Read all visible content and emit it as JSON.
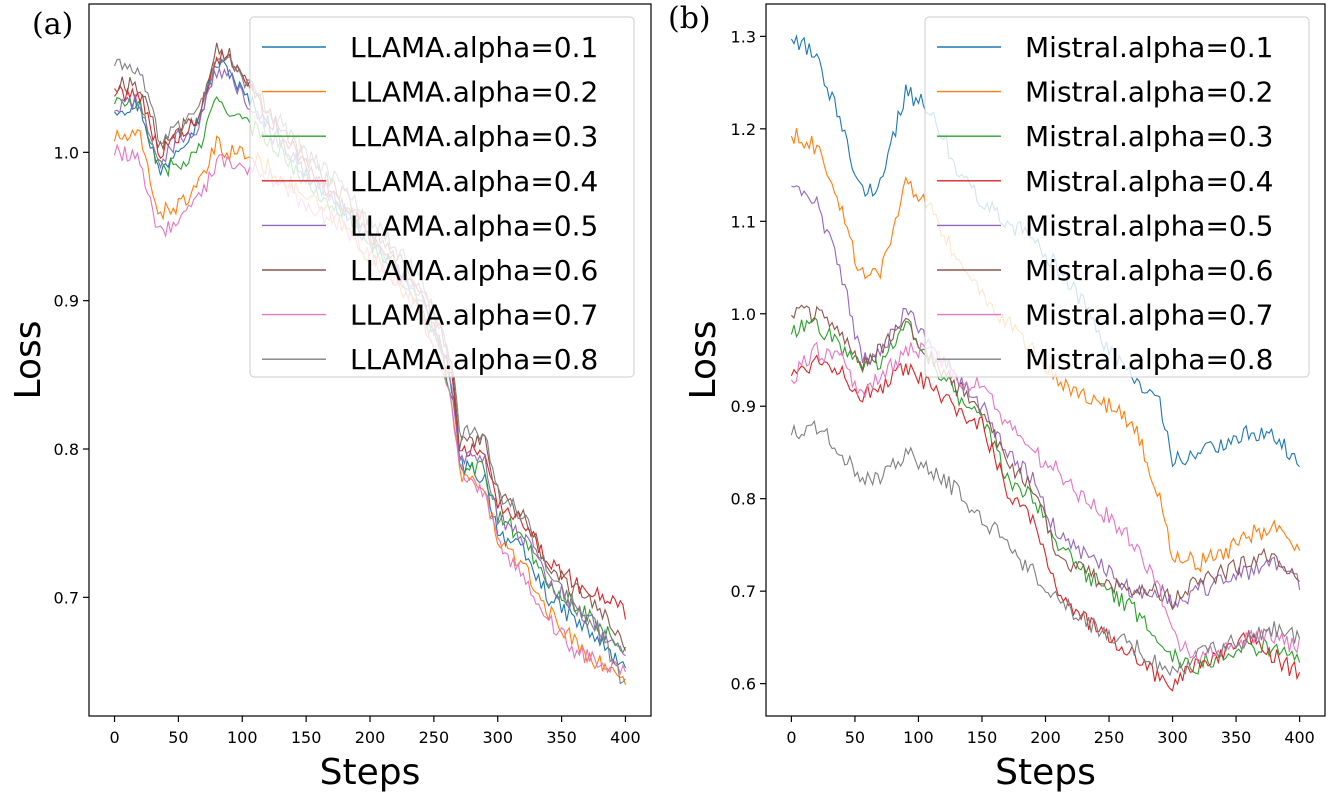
{
  "colors": [
    "#1f77b4",
    "#ff7f0e",
    "#2ca02c",
    "#d62728",
    "#9467bd",
    "#8c564b",
    "#e377c2",
    "#7f7f7f"
  ],
  "chart_data": [
    {
      "type": "line",
      "panel_label": "(a)",
      "xlabel": "Steps",
      "ylabel": "Loss",
      "xlim": [
        -20,
        420
      ],
      "ylim": [
        0.62,
        1.1
      ],
      "xticks": [
        0,
        50,
        100,
        150,
        200,
        250,
        300,
        350,
        400
      ],
      "yticks": [
        0.7,
        0.8,
        0.9,
        1.0
      ],
      "legend_position": "top-right",
      "grid": false,
      "anchor_x": [
        0,
        20,
        35,
        50,
        65,
        80,
        90,
        100,
        120,
        150,
        180,
        200,
        220,
        240,
        255,
        265,
        270,
        290,
        300,
        320,
        340,
        360,
        380,
        400
      ],
      "series": [
        {
          "name": "LLAMA.alpha=0.1",
          "values": [
            1.03,
            1.032,
            0.985,
            1.005,
            1.02,
            1.06,
            1.055,
            1.04,
            1.02,
            0.985,
            0.96,
            0.94,
            0.92,
            0.9,
            0.87,
            0.84,
            0.79,
            0.78,
            0.745,
            0.73,
            0.7,
            0.685,
            0.67,
            0.65
          ]
        },
        {
          "name": "LLAMA.alpha=0.2",
          "values": [
            1.01,
            1.01,
            0.958,
            0.965,
            0.975,
            1.005,
            1.0,
            1.0,
            0.99,
            0.97,
            0.95,
            0.93,
            0.915,
            0.89,
            0.86,
            0.825,
            0.785,
            0.77,
            0.74,
            0.72,
            0.69,
            0.67,
            0.655,
            0.645
          ]
        },
        {
          "name": "LLAMA.alpha=0.3",
          "values": [
            1.035,
            1.03,
            0.99,
            0.99,
            1.0,
            1.035,
            1.03,
            1.02,
            1.01,
            0.98,
            0.96,
            0.94,
            0.92,
            0.895,
            0.865,
            0.835,
            0.79,
            0.785,
            0.755,
            0.74,
            0.71,
            0.695,
            0.68,
            0.665
          ]
        },
        {
          "name": "LLAMA.alpha=0.4",
          "values": [
            1.04,
            1.04,
            1.0,
            1.01,
            1.02,
            1.065,
            1.06,
            1.05,
            1.025,
            0.99,
            0.965,
            0.945,
            0.925,
            0.905,
            0.875,
            0.845,
            0.8,
            0.8,
            0.765,
            0.75,
            0.725,
            0.71,
            0.7,
            0.69
          ]
        },
        {
          "name": "LLAMA.alpha=0.5",
          "values": [
            1.03,
            1.035,
            0.99,
            1.01,
            1.015,
            1.055,
            1.05,
            1.04,
            1.015,
            0.985,
            0.962,
            0.942,
            0.922,
            0.902,
            0.87,
            0.84,
            0.795,
            0.79,
            0.755,
            0.74,
            0.71,
            0.695,
            0.68,
            0.66
          ]
        },
        {
          "name": "LLAMA.alpha=0.6",
          "values": [
            1.045,
            1.045,
            1.005,
            1.015,
            1.025,
            1.07,
            1.065,
            1.05,
            1.03,
            0.995,
            0.97,
            0.95,
            0.93,
            0.91,
            0.88,
            0.85,
            0.805,
            0.805,
            0.77,
            0.755,
            0.72,
            0.705,
            0.69,
            0.67
          ]
        },
        {
          "name": "LLAMA.alpha=0.7",
          "values": [
            1.0,
            0.995,
            0.945,
            0.955,
            0.965,
            0.995,
            0.99,
            0.99,
            0.985,
            0.965,
            0.95,
            0.93,
            0.915,
            0.89,
            0.86,
            0.825,
            0.785,
            0.77,
            0.735,
            0.715,
            0.685,
            0.665,
            0.655,
            0.65
          ]
        },
        {
          "name": "LLAMA.alpha=0.8",
          "values": [
            1.06,
            1.055,
            1.01,
            1.015,
            1.025,
            1.065,
            1.06,
            1.05,
            1.03,
            1.0,
            0.975,
            0.955,
            0.935,
            0.915,
            0.885,
            0.855,
            0.81,
            0.81,
            0.77,
            0.755,
            0.715,
            0.695,
            0.675,
            0.64
          ]
        }
      ]
    },
    {
      "type": "line",
      "panel_label": "(b)",
      "xlabel": "Steps",
      "ylabel": "Loss",
      "xlim": [
        -20,
        420
      ],
      "ylim": [
        0.565,
        1.335
      ],
      "xticks": [
        0,
        50,
        100,
        150,
        200,
        250,
        300,
        350,
        400
      ],
      "yticks": [
        0.6,
        0.7,
        0.8,
        0.9,
        1.0,
        1.1,
        1.2,
        1.3
      ],
      "legend_position": "top-right",
      "grid": false,
      "anchor_x": [
        0,
        20,
        40,
        55,
        70,
        90,
        110,
        130,
        150,
        170,
        190,
        210,
        230,
        250,
        270,
        290,
        300,
        320,
        340,
        360,
        380,
        400
      ],
      "series": [
        {
          "name": "Mistral.alpha=0.1",
          "values": [
            1.3,
            1.28,
            1.2,
            1.13,
            1.14,
            1.24,
            1.22,
            1.16,
            1.12,
            1.1,
            1.08,
            1.05,
            1.01,
            0.96,
            0.93,
            0.9,
            0.84,
            0.85,
            0.86,
            0.87,
            0.87,
            0.84
          ]
        },
        {
          "name": "Mistral.alpha=0.2",
          "values": [
            1.195,
            1.18,
            1.11,
            1.04,
            1.04,
            1.14,
            1.11,
            1.06,
            1.02,
            0.99,
            0.96,
            0.93,
            0.91,
            0.9,
            0.88,
            0.8,
            0.74,
            0.73,
            0.74,
            0.76,
            0.77,
            0.74
          ]
        },
        {
          "name": "Mistral.alpha=0.3",
          "values": [
            0.98,
            0.99,
            0.96,
            0.945,
            0.95,
            0.985,
            0.95,
            0.91,
            0.89,
            0.82,
            0.8,
            0.75,
            0.72,
            0.7,
            0.68,
            0.64,
            0.63,
            0.62,
            0.63,
            0.64,
            0.64,
            0.63
          ]
        },
        {
          "name": "Mistral.alpha=0.4",
          "values": [
            0.935,
            0.95,
            0.94,
            0.91,
            0.92,
            0.94,
            0.92,
            0.895,
            0.88,
            0.81,
            0.78,
            0.7,
            0.67,
            0.65,
            0.63,
            0.605,
            0.6,
            0.62,
            0.63,
            0.65,
            0.63,
            0.61
          ]
        },
        {
          "name": "Mistral.alpha=0.5",
          "values": [
            1.14,
            1.12,
            1.04,
            0.95,
            0.96,
            1.0,
            0.97,
            0.93,
            0.9,
            0.85,
            0.82,
            0.76,
            0.74,
            0.72,
            0.7,
            0.7,
            0.69,
            0.7,
            0.71,
            0.72,
            0.73,
            0.71
          ]
        },
        {
          "name": "Mistral.alpha=0.6",
          "values": [
            1.0,
            1.0,
            0.98,
            0.94,
            0.96,
            0.99,
            0.95,
            0.92,
            0.9,
            0.84,
            0.81,
            0.74,
            0.72,
            0.71,
            0.7,
            0.7,
            0.69,
            0.71,
            0.72,
            0.73,
            0.74,
            0.71
          ]
        },
        {
          "name": "Mistral.alpha=0.7",
          "values": [
            0.93,
            0.96,
            0.95,
            0.915,
            0.93,
            0.96,
            0.96,
            0.93,
            0.92,
            0.88,
            0.85,
            0.83,
            0.8,
            0.78,
            0.75,
            0.7,
            0.65,
            0.63,
            0.64,
            0.65,
            0.65,
            0.64
          ]
        },
        {
          "name": "Mistral.alpha=0.8",
          "values": [
            0.87,
            0.88,
            0.85,
            0.82,
            0.825,
            0.85,
            0.83,
            0.81,
            0.78,
            0.75,
            0.72,
            0.69,
            0.67,
            0.65,
            0.64,
            0.62,
            0.61,
            0.63,
            0.64,
            0.65,
            0.66,
            0.65
          ]
        }
      ]
    }
  ]
}
